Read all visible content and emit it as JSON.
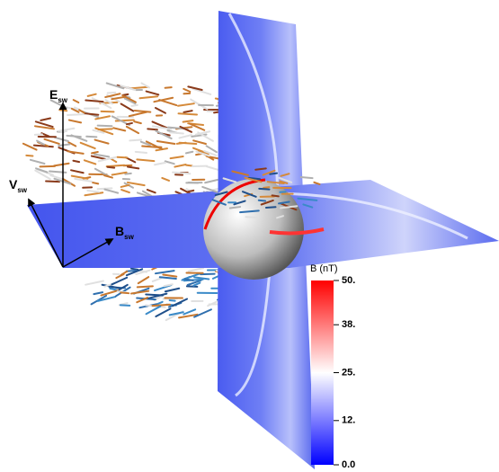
{
  "figure": {
    "axes": [
      {
        "symbol": "E",
        "subscript": "sw"
      },
      {
        "symbol": "V",
        "subscript": "sw"
      },
      {
        "symbol": "B",
        "subscript": "sw"
      }
    ],
    "colorbar": {
      "label": "B (nT)",
      "lim": [
        0,
        50
      ],
      "ticks": [
        {
          "value": 0,
          "label": "0.0"
        },
        {
          "value": 12,
          "label": "12."
        },
        {
          "value": 25,
          "label": "25."
        },
        {
          "value": 38,
          "label": "38."
        },
        {
          "value": 50,
          "label": "50."
        }
      ]
    }
  }
}
